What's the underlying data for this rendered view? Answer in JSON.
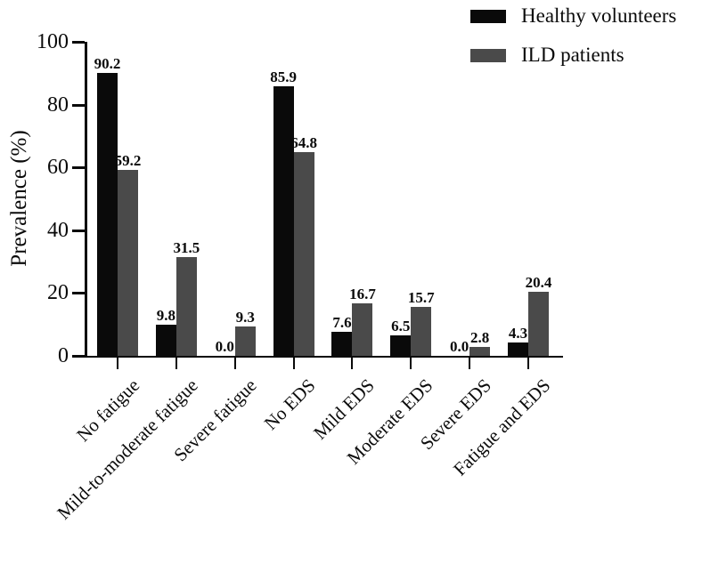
{
  "chart_data": {
    "type": "bar",
    "title": "",
    "xlabel": "",
    "ylabel": "Prevalence (%)",
    "ylim": [
      0,
      100
    ],
    "yticks": [
      0,
      20,
      40,
      60,
      80,
      100
    ],
    "grid": false,
    "legend_position": "top-right",
    "value_labels": true,
    "categories": [
      "No fatigue",
      "Mild-to-moderate fatigue",
      "Severe fatigue",
      "No EDS",
      "Mild EDS",
      "Moderate EDS",
      "Severe EDS",
      "Fatigue and EDS"
    ],
    "series": [
      {
        "name": "Healthy volunteers",
        "color": "#0a0a0a",
        "values": [
          90.2,
          9.8,
          0.0,
          85.9,
          7.6,
          6.5,
          0.0,
          4.3
        ]
      },
      {
        "name": "ILD patients",
        "color": "#4a4a4a",
        "values": [
          59.2,
          31.5,
          9.3,
          64.8,
          16.7,
          15.7,
          2.8,
          20.4
        ]
      }
    ]
  }
}
